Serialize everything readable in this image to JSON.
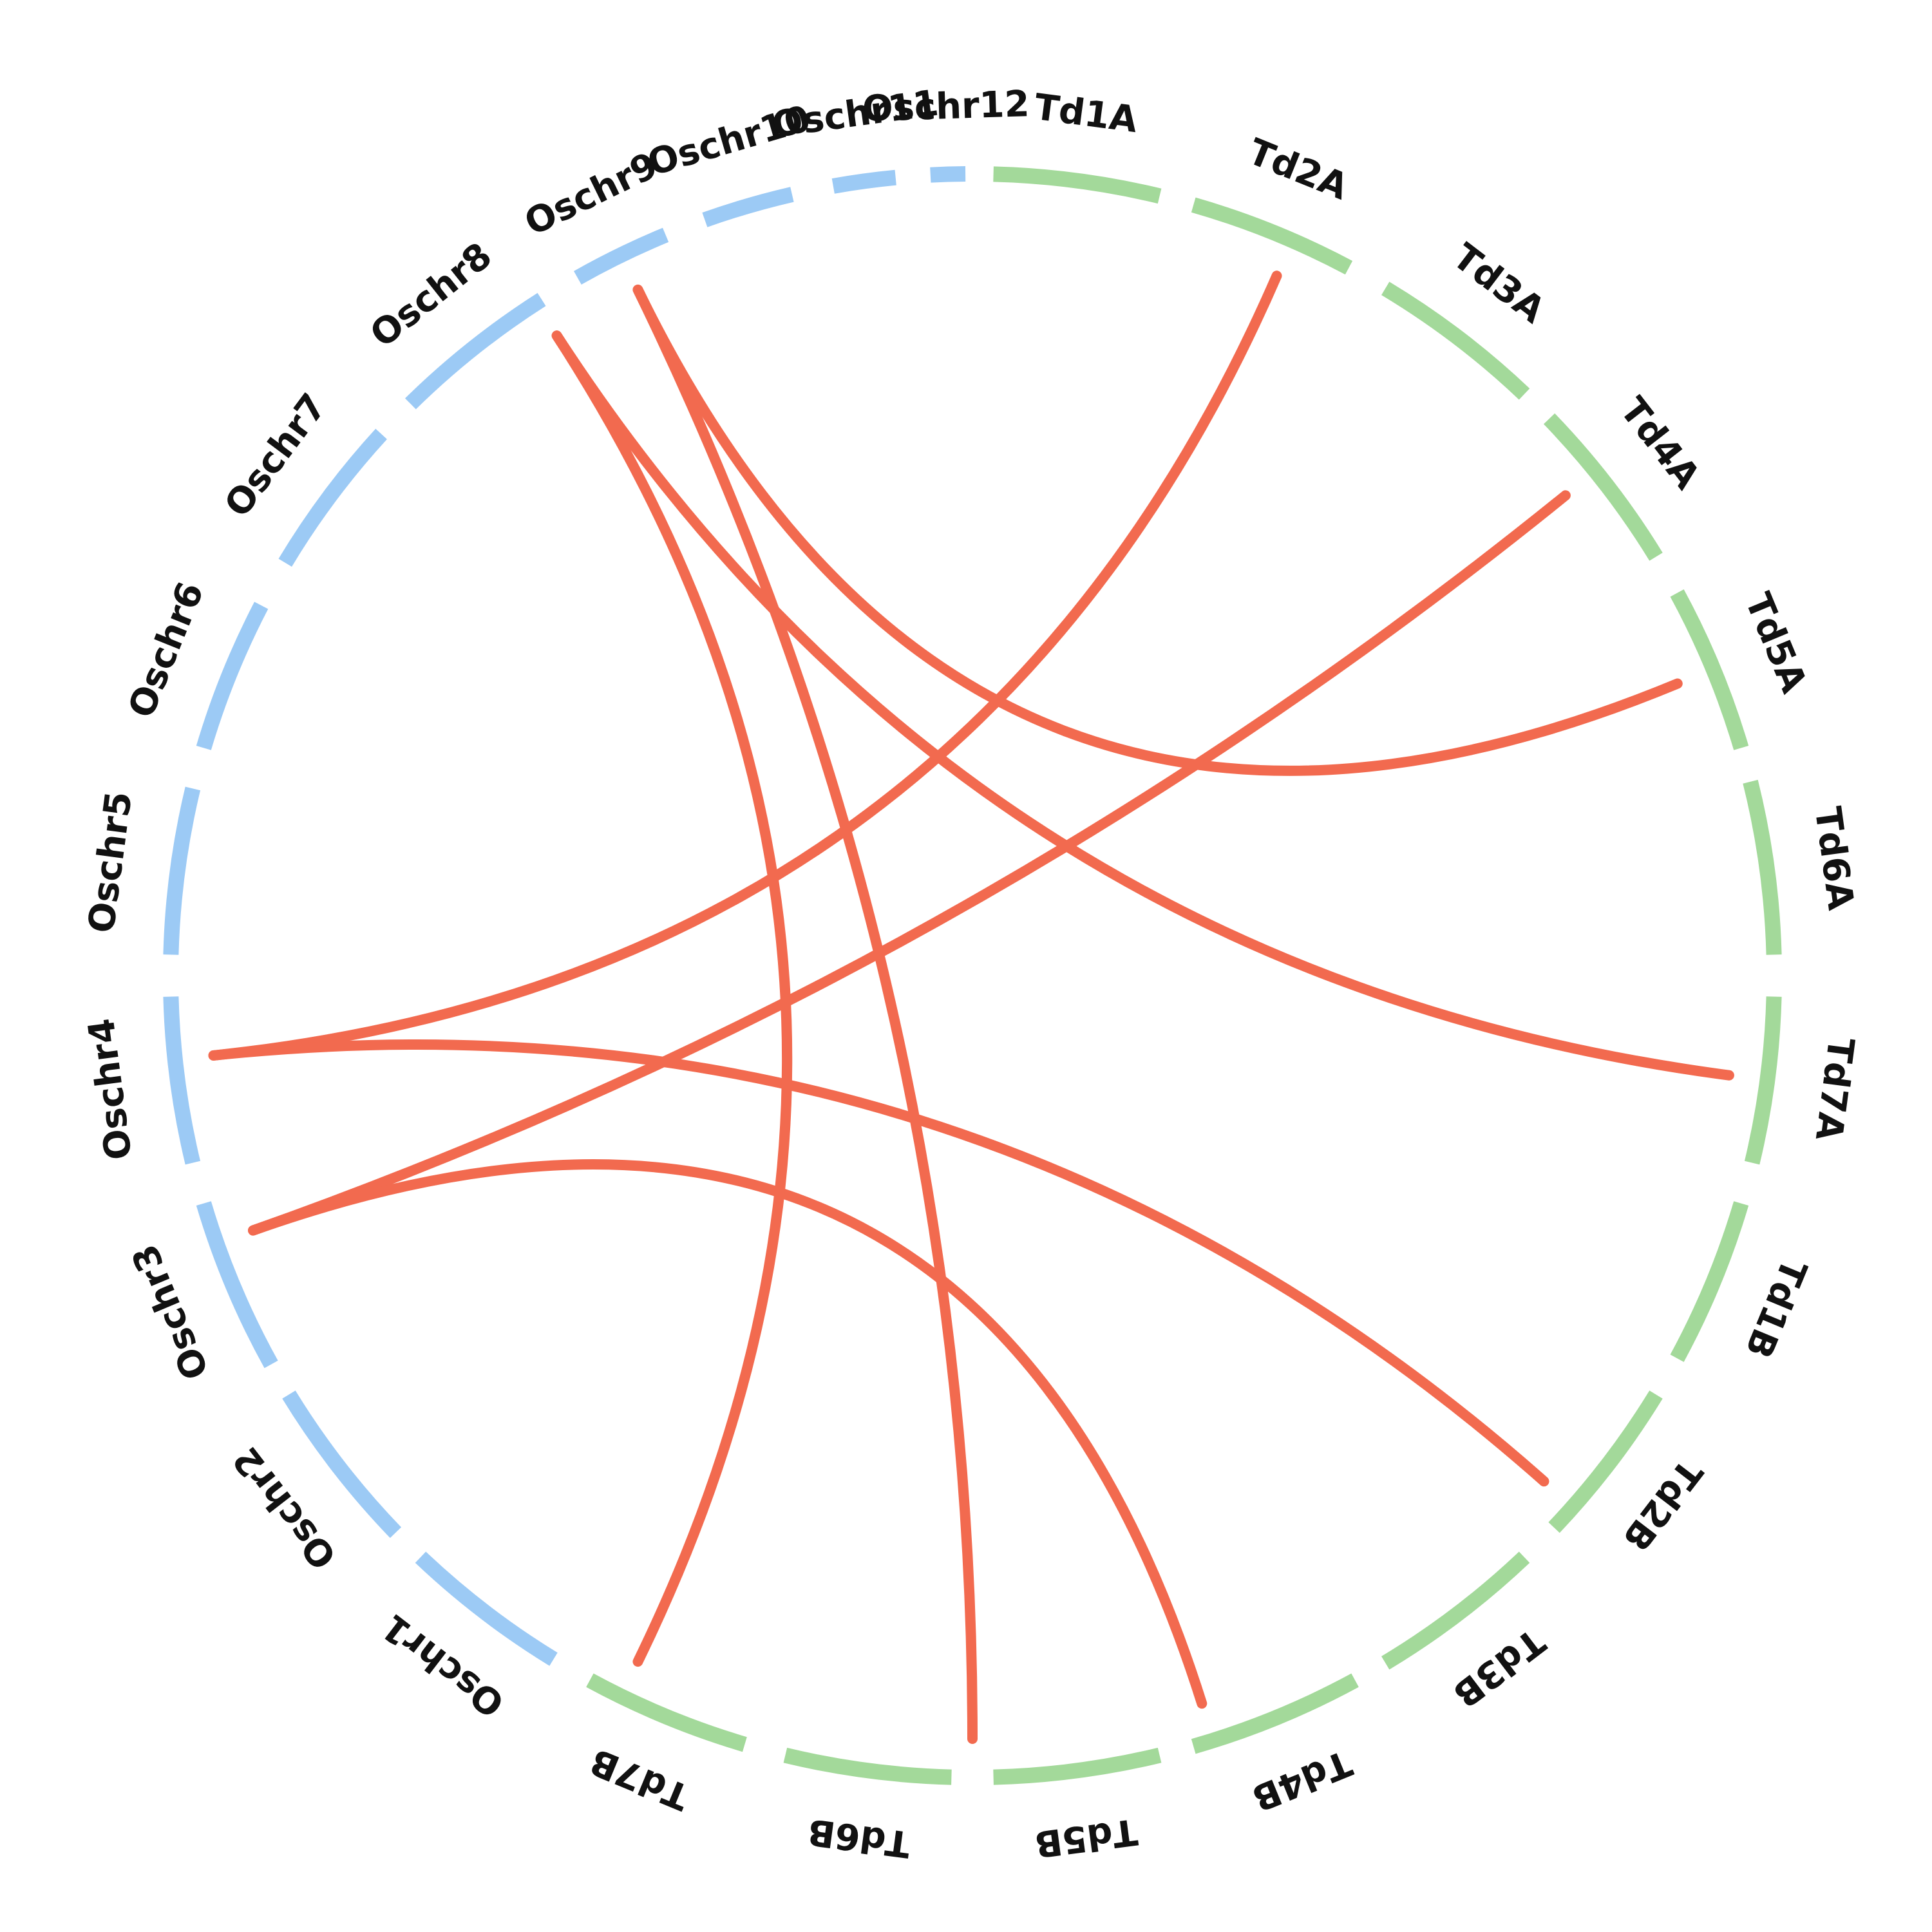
{
  "colors": {
    "rice": "#9ccaf5",
    "wheat": "#a3d99a",
    "link": "#f26a4f"
  },
  "chromosomes": [
    {
      "id": "Td1A",
      "label": "Td1A",
      "group": "wheat"
    },
    {
      "id": "Td2A",
      "label": "Td2A",
      "group": "wheat"
    },
    {
      "id": "Td3A",
      "label": "Td3A",
      "group": "wheat"
    },
    {
      "id": "Td4A",
      "label": "Td4A",
      "group": "wheat"
    },
    {
      "id": "Td5A",
      "label": "Td5A",
      "group": "wheat"
    },
    {
      "id": "Td6A",
      "label": "Td6A",
      "group": "wheat"
    },
    {
      "id": "Td7A",
      "label": "Td7A",
      "group": "wheat"
    },
    {
      "id": "Td1B",
      "label": "Td1B",
      "group": "wheat"
    },
    {
      "id": "Td2B",
      "label": "Td2B",
      "group": "wheat"
    },
    {
      "id": "Td3B",
      "label": "Td3B",
      "group": "wheat"
    },
    {
      "id": "Td4B",
      "label": "Td4B",
      "group": "wheat"
    },
    {
      "id": "Td5B",
      "label": "Td5B",
      "group": "wheat"
    },
    {
      "id": "Td6B",
      "label": "Td6B",
      "group": "wheat"
    },
    {
      "id": "Td7B",
      "label": "Td7B",
      "group": "wheat"
    },
    {
      "id": "Oschr1",
      "label": "Oschr1",
      "group": "rice"
    },
    {
      "id": "Oschr2",
      "label": "Oschr2",
      "group": "rice"
    },
    {
      "id": "Oschr3",
      "label": "Oschr3",
      "group": "rice"
    },
    {
      "id": "Oschr4",
      "label": "Oschr4",
      "group": "rice"
    },
    {
      "id": "Oschr5",
      "label": "Oschr5",
      "group": "rice"
    },
    {
      "id": "Oschr6",
      "label": "Oschr6",
      "group": "rice"
    },
    {
      "id": "Oschr7",
      "label": "Oschr7",
      "group": "rice"
    },
    {
      "id": "Oschr8",
      "label": "Oschr8",
      "group": "rice"
    },
    {
      "id": "Oschr9",
      "label": "Oschr9",
      "group": "rice"
    },
    {
      "id": "Oschr10",
      "label": "Oschr10",
      "group": "rice"
    },
    {
      "id": "Oschr11",
      "label": "Oschr11",
      "group": "rice"
    },
    {
      "id": "Oschr12",
      "label": "Oschr12",
      "group": "rice"
    }
  ],
  "links": [
    {
      "from": "Oschr4",
      "to": "Td2A"
    },
    {
      "from": "Oschr4",
      "to": "Td2B"
    },
    {
      "from": "Oschr3",
      "to": "Td4A"
    },
    {
      "from": "Oschr3",
      "to": "Td4B"
    },
    {
      "from": "Oschr9",
      "to": "Td5A"
    },
    {
      "from": "Oschr9",
      "to": "Td5B"
    },
    {
      "from": "Oschr8",
      "to": "Td7A"
    },
    {
      "from": "Oschr8",
      "to": "Td7B"
    }
  ]
}
